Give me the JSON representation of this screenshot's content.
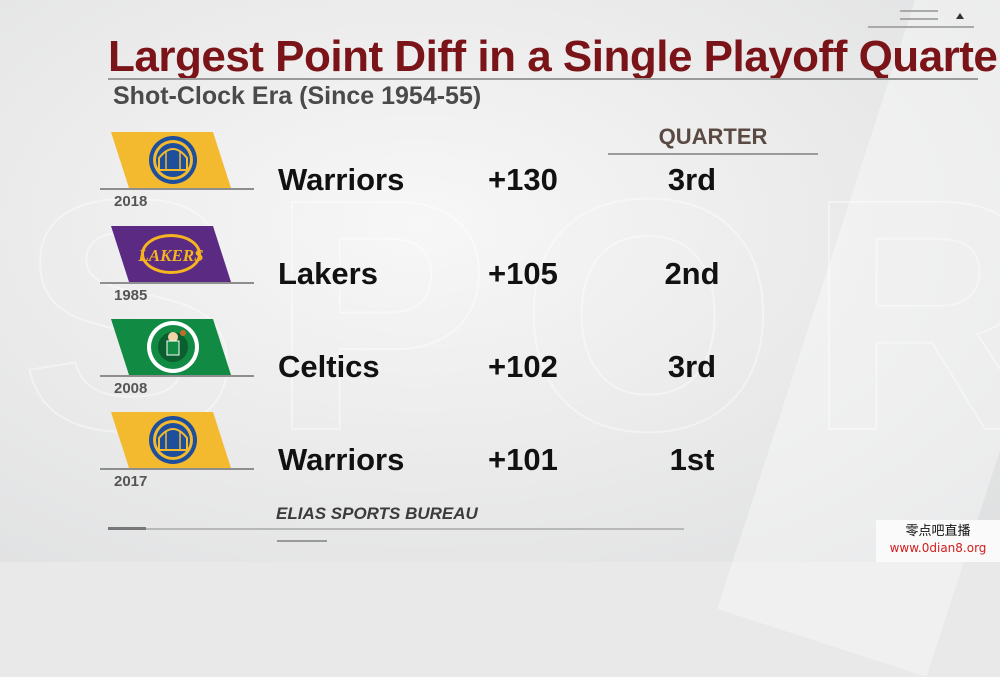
{
  "title": "Largest Point Diff in a Single Playoff Quarter",
  "subtitle": "Shot-Clock Era (Since 1954-55)",
  "column_header": "QUARTER",
  "rows": [
    {
      "team": "Warriors",
      "year": "2018",
      "diff": "+130",
      "quarter": "3rd",
      "logo": "warriors-logo",
      "logo_color": "#f3b92f",
      "logo_accent": "#1d4f9c"
    },
    {
      "team": "Lakers",
      "year": "1985",
      "diff": "+105",
      "quarter": "2nd",
      "logo": "lakers-logo",
      "logo_color": "#5b2b84",
      "logo_accent": "#f6b51e"
    },
    {
      "team": "Celtics",
      "year": "2008",
      "diff": "+102",
      "quarter": "3rd",
      "logo": "celtics-logo",
      "logo_color": "#118a43",
      "logo_accent": "#0b5e2d"
    },
    {
      "team": "Warriors",
      "year": "2017",
      "diff": "+101",
      "quarter": "1st",
      "logo": "warriors-logo",
      "logo_color": "#f3b92f",
      "logo_accent": "#1d4f9c"
    }
  ],
  "source": "ELIAS SPORTS BUREAU",
  "watermark": {
    "line1": "零点吧直播",
    "line2": "www.0dian8.org"
  },
  "colors": {
    "title": "#7a1418",
    "text": "#111111"
  }
}
